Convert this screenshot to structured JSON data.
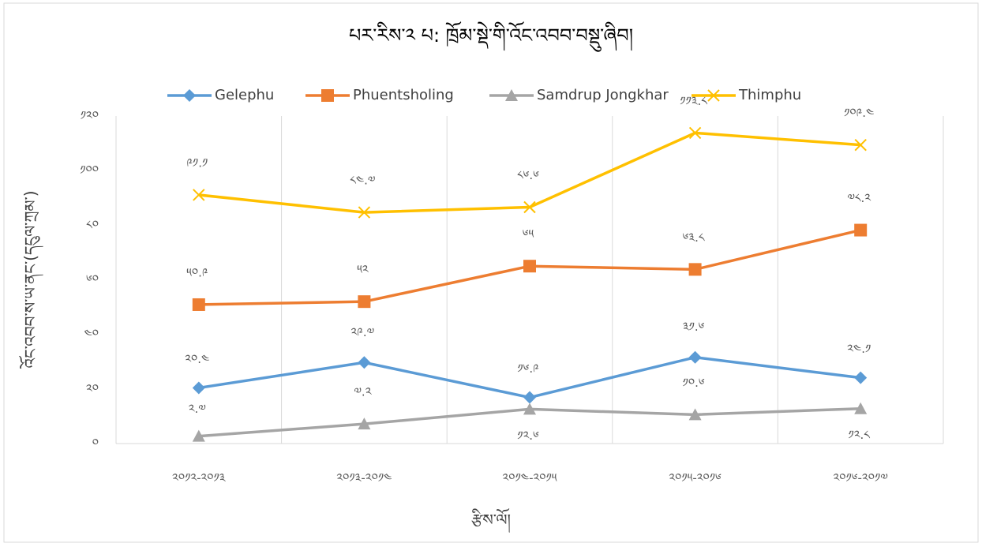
{
  "chart_data": {
    "type": "line",
    "title": "པར་རིས་༢ པ: ཁྲོམ་སྡེ་གི་འོང་འབབ་བསྡུ་ཞིབ།",
    "x_label": "རྩིས་ལོ།",
    "y_label": "འོང་འབབ་ས་ཡ་ནང་(དངུལ་ཀྲམ་)",
    "categories": [
      "༢༠༡༢-༢༠༡༣",
      "༢༠༡༣-༢༠༡༤",
      "༢༠༡༤-༢༠༡༥",
      "༢༠༡༥-༢༠༡༦",
      "༢༠༡༦-༢༠༡༧"
    ],
    "series": [
      {
        "name": "Gelephu",
        "color": "#5b9bd5",
        "marker": "diamond",
        "values": [
          20.4,
          29.7,
          16.9,
          31.6,
          24.1
        ],
        "value_labels": [
          "༢༠.༤",
          "༢༩.༧",
          "༡༦.༩",
          "༣༡.༦",
          "༢༤.༡"
        ]
      },
      {
        "name": "Phuentsholing",
        "color": "#ed7d31",
        "marker": "square",
        "values": [
          50.9,
          52,
          65,
          63.8,
          78.2
        ],
        "value_labels": [
          "༥༠.༩",
          "༥༢",
          "༦༥",
          "༦༣.༨",
          "༧༨.༢"
        ]
      },
      {
        "name": "Samdrup Jongkhar",
        "color": "#a5a5a5",
        "marker": "triangle",
        "values": [
          2.7,
          7.2,
          12.6,
          10.6,
          12.8
        ],
        "value_labels": [
          "༢.༧",
          "༧.༢",
          "༡༢.༦",
          "༡༠.༦",
          "༡༢.༨"
        ]
      },
      {
        "name": "Thimphu",
        "color": "#ffc000",
        "marker": "x",
        "values": [
          91.1,
          84.7,
          86.6,
          113.8,
          109.4
        ],
        "value_labels": [
          "༩༡.༡",
          "༨༤.༧",
          "༨༦.༦",
          "༡༡༣.༨",
          "༡༠༩.༤"
        ]
      }
    ],
    "ylim": [
      0,
      120
    ],
    "yticks": [
      {
        "value": 0,
        "label": "༠"
      },
      {
        "value": 20,
        "label": "༢༠"
      },
      {
        "value": 40,
        "label": "༤༠"
      },
      {
        "value": 60,
        "label": "༦༠"
      },
      {
        "value": 80,
        "label": "༨༠"
      },
      {
        "value": 100,
        "label": "༡༠༠"
      },
      {
        "value": 120,
        "label": "༡༢༠"
      }
    ],
    "grid": true,
    "legend": "top"
  }
}
